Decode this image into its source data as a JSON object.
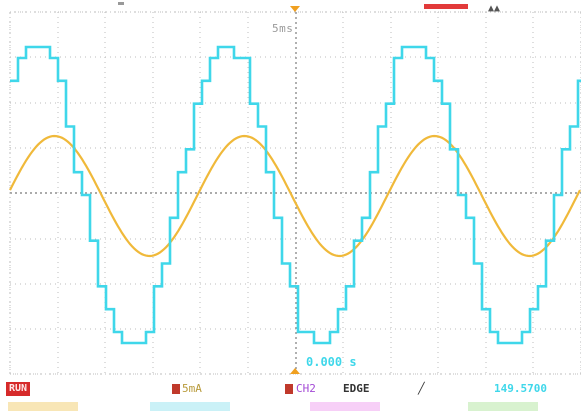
{
  "screen": {
    "timebase_label": "5ms",
    "trigger_readout": "0.000 s"
  },
  "statusbar": {
    "run_state": "RUN",
    "ch1_scale": "5mA",
    "ch2_label": "CH2",
    "trigger_type": "EDGE",
    "trigger_slope": "╱",
    "frequency": "149.5700"
  },
  "colors": {
    "ch1_trace": "#f0b93a",
    "ch2_trace": "#3fd7ea",
    "grid": "#c9c9c9",
    "run_badge": "#d62a2a"
  }
}
